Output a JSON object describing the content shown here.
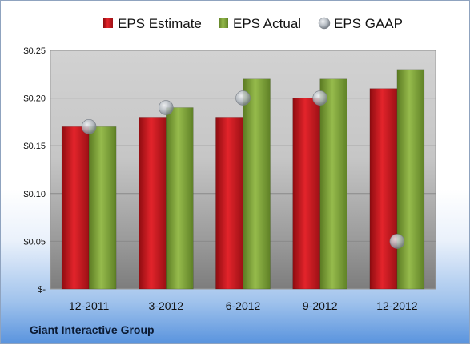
{
  "footer": {
    "company": "Giant Interactive Group"
  },
  "colors": {
    "estimate": "#c8141c",
    "actual": "#7fa23a",
    "gaap": "#a6adb5"
  },
  "chart_data": {
    "type": "bar",
    "title": "",
    "xlabel": "",
    "ylabel": "",
    "categories": [
      "12-2011",
      "3-2012",
      "6-2012",
      "9-2012",
      "12-2012"
    ],
    "series": [
      {
        "name": "EPS Estimate",
        "kind": "bar",
        "values": [
          0.17,
          0.18,
          0.18,
          0.2,
          0.21
        ]
      },
      {
        "name": "EPS Actual",
        "kind": "bar",
        "values": [
          0.17,
          0.19,
          0.22,
          0.22,
          0.23
        ]
      },
      {
        "name": "EPS GAAP",
        "kind": "marker",
        "values": [
          0.17,
          0.19,
          0.2,
          0.2,
          0.05
        ]
      }
    ],
    "ylim": [
      0,
      0.25
    ],
    "yticks": [
      0,
      0.05,
      0.1,
      0.15,
      0.2,
      0.25
    ],
    "ytick_labels": [
      "$-",
      "$0.05",
      "$0.10",
      "$0.15",
      "$0.20",
      "$0.25"
    ],
    "grid": true,
    "legend": "top"
  }
}
